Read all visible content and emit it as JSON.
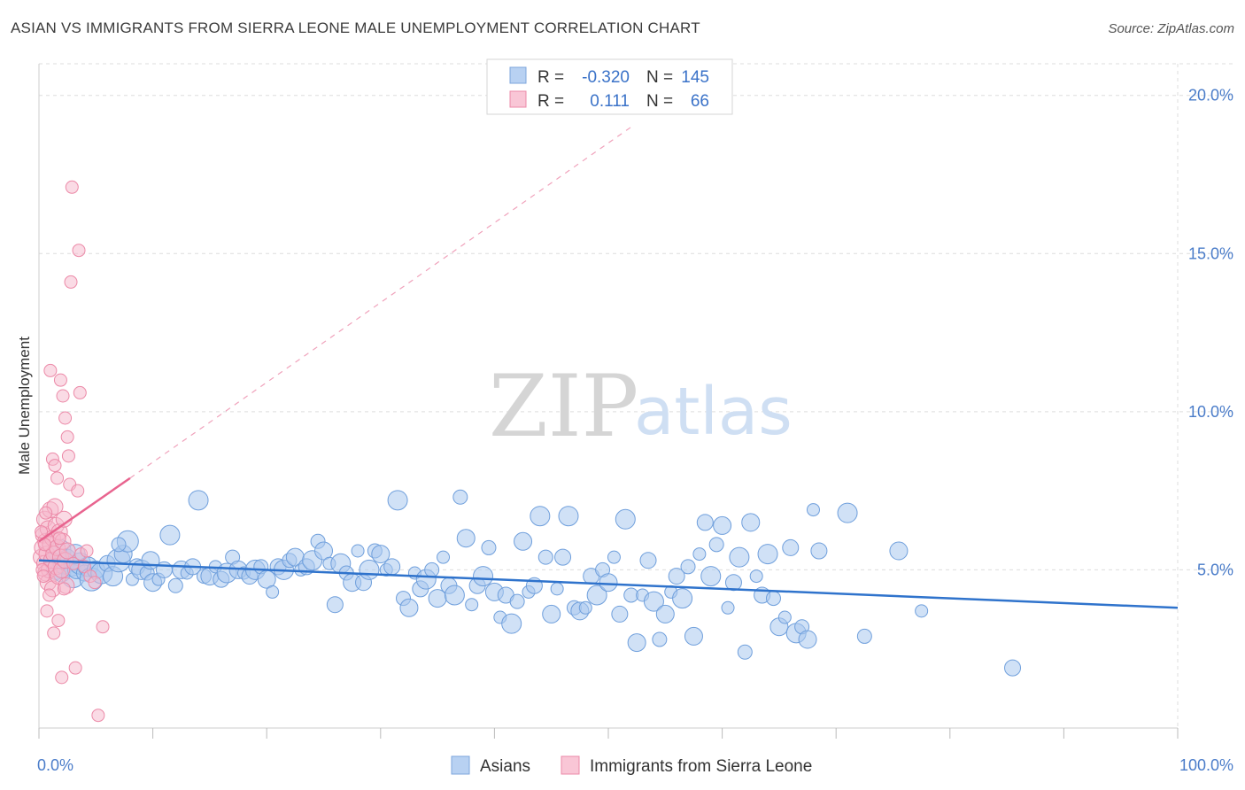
{
  "header": {
    "title": "ASIAN VS IMMIGRANTS FROM SIERRA LEONE MALE UNEMPLOYMENT CORRELATION CHART",
    "source": "Source: ZipAtlas.com"
  },
  "watermark": {
    "zip": "ZIP",
    "atlas": "atlas"
  },
  "colors": {
    "asians_fill": "#a9c8ef",
    "asians_stroke": "#6f9fdc",
    "asians_line": "#2f73cc",
    "sierra_fill": "#f6b8cb",
    "sierra_stroke": "#ec8aa8",
    "sierra_line": "#e8648f",
    "grid": "#dddddd",
    "tick_text": "#4a7cc9"
  },
  "chart_data": {
    "type": "scatter",
    "title": "ASIAN VS IMMIGRANTS FROM SIERRA LEONE MALE UNEMPLOYMENT CORRELATION CHART",
    "xlabel": "",
    "ylabel": "Male Unemployment",
    "xlim": [
      0,
      100
    ],
    "ylim": [
      0,
      21
    ],
    "x_tick_labels": {
      "min": "0.0%",
      "max": "100.0%"
    },
    "y_ticks": [
      {
        "value": 5,
        "label": "5.0%"
      },
      {
        "value": 10,
        "label": "10.0%"
      },
      {
        "value": 15,
        "label": "15.0%"
      },
      {
        "value": 20,
        "label": "20.0%"
      }
    ],
    "grid": true,
    "legend": {
      "position": "top-center",
      "entries": [
        {
          "r_label": "R =",
          "r_value": "-0.320",
          "n_label": "N =",
          "n_value": "145"
        },
        {
          "r_label": "R =",
          "r_value": "0.111",
          "n_label": "N =",
          "n_value": "66"
        }
      ]
    },
    "series": [
      {
        "name": "Asians",
        "trend": {
          "x": [
            0,
            100
          ],
          "y": [
            5.3,
            3.8
          ],
          "dashed_extension": false
        },
        "points": [
          [
            1.2,
            5.3
          ],
          [
            1.5,
            5.0
          ],
          [
            1.8,
            5.6
          ],
          [
            2.0,
            4.9
          ],
          [
            2.2,
            5.2
          ],
          [
            2.5,
            5.4
          ],
          [
            2.8,
            5.1
          ],
          [
            3.0,
            4.8
          ],
          [
            3.3,
            5.0
          ],
          [
            3.6,
            5.2
          ],
          [
            4.0,
            4.9
          ],
          [
            4.3,
            5.1
          ],
          [
            4.6,
            4.7
          ],
          [
            5.0,
            5.0
          ],
          [
            5.5,
            4.9
          ],
          [
            6.0,
            5.2
          ],
          [
            6.5,
            4.8
          ],
          [
            7.0,
            5.3
          ],
          [
            7.4,
            5.5
          ],
          [
            7.8,
            5.9
          ],
          [
            8.2,
            4.7
          ],
          [
            8.6,
            5.1
          ],
          [
            9.0,
            5.0
          ],
          [
            9.5,
            4.9
          ],
          [
            10.0,
            4.6
          ],
          [
            10.5,
            4.7
          ],
          [
            11.0,
            5.0
          ],
          [
            11.5,
            6.1
          ],
          [
            12.0,
            4.5
          ],
          [
            12.5,
            5.0
          ],
          [
            13.0,
            4.9
          ],
          [
            13.5,
            5.1
          ],
          [
            14.0,
            7.2
          ],
          [
            14.5,
            4.8
          ],
          [
            15.0,
            4.8
          ],
          [
            15.5,
            5.1
          ],
          [
            16.0,
            4.7
          ],
          [
            16.5,
            4.9
          ],
          [
            17.0,
            5.4
          ],
          [
            17.5,
            5.0
          ],
          [
            18.0,
            4.9
          ],
          [
            18.5,
            4.8
          ],
          [
            19.0,
            5.0
          ],
          [
            19.5,
            5.1
          ],
          [
            20.0,
            4.7
          ],
          [
            20.5,
            4.3
          ],
          [
            21.0,
            5.1
          ],
          [
            21.5,
            5.0
          ],
          [
            22.0,
            5.3
          ],
          [
            22.5,
            5.4
          ],
          [
            23.0,
            5.0
          ],
          [
            23.5,
            5.1
          ],
          [
            24.0,
            5.3
          ],
          [
            24.5,
            5.9
          ],
          [
            25.0,
            5.6
          ],
          [
            25.5,
            5.2
          ],
          [
            26.0,
            3.9
          ],
          [
            26.5,
            5.2
          ],
          [
            27.0,
            4.9
          ],
          [
            27.5,
            4.6
          ],
          [
            28.0,
            5.6
          ],
          [
            28.5,
            4.6
          ],
          [
            29.0,
            5.0
          ],
          [
            29.5,
            5.6
          ],
          [
            30.0,
            5.5
          ],
          [
            30.5,
            5.0
          ],
          [
            31.0,
            5.1
          ],
          [
            31.5,
            7.2
          ],
          [
            32.0,
            4.1
          ],
          [
            32.5,
            3.8
          ],
          [
            33.0,
            4.9
          ],
          [
            33.5,
            4.4
          ],
          [
            34.0,
            4.7
          ],
          [
            34.5,
            5.0
          ],
          [
            35.0,
            4.1
          ],
          [
            35.5,
            5.4
          ],
          [
            36.0,
            4.5
          ],
          [
            36.5,
            4.2
          ],
          [
            37.0,
            7.3
          ],
          [
            37.5,
            6.0
          ],
          [
            38.0,
            3.9
          ],
          [
            38.5,
            4.5
          ],
          [
            39.0,
            4.8
          ],
          [
            39.5,
            5.7
          ],
          [
            40.0,
            4.3
          ],
          [
            40.5,
            3.5
          ],
          [
            41.0,
            4.2
          ],
          [
            41.5,
            3.3
          ],
          [
            42.0,
            4.0
          ],
          [
            42.5,
            5.9
          ],
          [
            43.0,
            4.3
          ],
          [
            43.5,
            4.5
          ],
          [
            44.0,
            6.7
          ],
          [
            44.5,
            5.4
          ],
          [
            45.0,
            3.6
          ],
          [
            45.5,
            4.4
          ],
          [
            46.0,
            5.4
          ],
          [
            46.5,
            6.7
          ],
          [
            47.0,
            3.8
          ],
          [
            47.5,
            3.7
          ],
          [
            48.0,
            3.8
          ],
          [
            48.5,
            4.8
          ],
          [
            49.0,
            4.2
          ],
          [
            49.5,
            5.0
          ],
          [
            50.0,
            4.6
          ],
          [
            50.5,
            5.4
          ],
          [
            51.0,
            3.6
          ],
          [
            51.5,
            6.6
          ],
          [
            52.0,
            4.2
          ],
          [
            52.5,
            2.7
          ],
          [
            53.0,
            4.2
          ],
          [
            53.5,
            5.3
          ],
          [
            54.0,
            4.0
          ],
          [
            54.5,
            2.8
          ],
          [
            55.0,
            3.6
          ],
          [
            55.5,
            4.3
          ],
          [
            56.0,
            4.8
          ],
          [
            56.5,
            4.1
          ],
          [
            57.0,
            5.1
          ],
          [
            57.5,
            2.9
          ],
          [
            58.0,
            5.5
          ],
          [
            58.5,
            6.5
          ],
          [
            59.0,
            4.8
          ],
          [
            59.5,
            5.8
          ],
          [
            60.0,
            6.4
          ],
          [
            60.5,
            3.8
          ],
          [
            61.0,
            4.6
          ],
          [
            61.5,
            5.4
          ],
          [
            62.0,
            2.4
          ],
          [
            62.5,
            6.5
          ],
          [
            63.0,
            4.8
          ],
          [
            63.5,
            4.2
          ],
          [
            64.0,
            5.5
          ],
          [
            64.5,
            4.1
          ],
          [
            65.0,
            3.2
          ],
          [
            65.5,
            3.5
          ],
          [
            66.0,
            5.7
          ],
          [
            66.5,
            3.0
          ],
          [
            67.0,
            3.2
          ],
          [
            67.5,
            2.8
          ],
          [
            68.0,
            6.9
          ],
          [
            68.5,
            5.6
          ],
          [
            71.0,
            6.8
          ],
          [
            72.5,
            2.9
          ],
          [
            75.5,
            5.6
          ],
          [
            77.5,
            3.7
          ],
          [
            85.5,
            1.9
          ],
          [
            3.2,
            5.5
          ],
          [
            7.0,
            5.8
          ],
          [
            9.8,
            5.3
          ]
        ]
      },
      {
        "name": "Immigrants from Sierra Leone",
        "trend": {
          "x": [
            0,
            8
          ],
          "y": [
            5.9,
            7.9
          ],
          "dashed_extension": true,
          "dashed_to": [
            52,
            19.0
          ]
        },
        "points": [
          [
            0.2,
            5.4
          ],
          [
            0.3,
            5.7
          ],
          [
            0.4,
            6.1
          ],
          [
            0.5,
            5.2
          ],
          [
            0.5,
            6.6
          ],
          [
            0.6,
            4.9
          ],
          [
            0.6,
            5.9
          ],
          [
            0.7,
            5.5
          ],
          [
            0.8,
            6.3
          ],
          [
            0.8,
            4.6
          ],
          [
            0.9,
            5.0
          ],
          [
            1.0,
            5.8
          ],
          [
            1.0,
            6.9
          ],
          [
            1.1,
            5.3
          ],
          [
            1.2,
            4.4
          ],
          [
            1.2,
            6.0
          ],
          [
            1.3,
            5.5
          ],
          [
            1.4,
            7.0
          ],
          [
            1.5,
            5.1
          ],
          [
            1.5,
            6.4
          ],
          [
            1.6,
            5.7
          ],
          [
            1.7,
            4.8
          ],
          [
            1.8,
            6.2
          ],
          [
            1.9,
            5.4
          ],
          [
            2.0,
            5.0
          ],
          [
            2.1,
            5.9
          ],
          [
            2.2,
            6.6
          ],
          [
            2.3,
            5.3
          ],
          [
            2.4,
            4.5
          ],
          [
            2.5,
            5.6
          ],
          [
            0.3,
            5.0
          ],
          [
            0.4,
            4.8
          ],
          [
            0.6,
            6.8
          ],
          [
            0.7,
            3.7
          ],
          [
            0.9,
            4.2
          ],
          [
            1.0,
            11.3
          ],
          [
            1.2,
            8.5
          ],
          [
            1.3,
            3.0
          ],
          [
            1.4,
            8.3
          ],
          [
            1.6,
            7.9
          ],
          [
            1.7,
            3.4
          ],
          [
            1.8,
            6.0
          ],
          [
            1.9,
            11.0
          ],
          [
            2.0,
            1.6
          ],
          [
            2.1,
            10.5
          ],
          [
            2.2,
            4.4
          ],
          [
            2.3,
            9.8
          ],
          [
            2.5,
            9.2
          ],
          [
            2.6,
            8.6
          ],
          [
            2.7,
            7.7
          ],
          [
            2.8,
            14.1
          ],
          [
            2.9,
            17.1
          ],
          [
            3.0,
            5.2
          ],
          [
            3.2,
            1.9
          ],
          [
            3.4,
            7.5
          ],
          [
            3.5,
            15.1
          ],
          [
            3.6,
            10.6
          ],
          [
            3.7,
            5.5
          ],
          [
            4.0,
            5.1
          ],
          [
            4.2,
            5.6
          ],
          [
            4.5,
            4.8
          ],
          [
            4.9,
            4.6
          ],
          [
            5.2,
            0.4
          ],
          [
            5.6,
            3.2
          ],
          [
            0.2,
            6.2
          ],
          [
            0.5,
            5.8
          ]
        ]
      }
    ],
    "bottom_legend": [
      "Asians",
      "Immigrants from Sierra Leone"
    ]
  }
}
